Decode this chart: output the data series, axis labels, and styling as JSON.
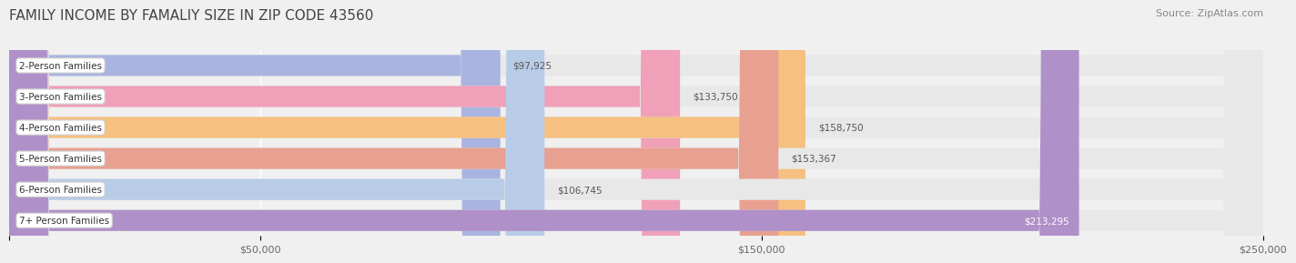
{
  "title": "FAMILY INCOME BY FAMALIY SIZE IN ZIP CODE 43560",
  "source": "Source: ZipAtlas.com",
  "categories": [
    "2-Person Families",
    "3-Person Families",
    "4-Person Families",
    "5-Person Families",
    "6-Person Families",
    "7+ Person Families"
  ],
  "values": [
    97925,
    133750,
    158750,
    153367,
    106745,
    213295
  ],
  "bar_colors": [
    "#aab4e0",
    "#f0a0b8",
    "#f5c080",
    "#e8a090",
    "#b8cce8",
    "#b090c8"
  ],
  "label_colors": [
    "#333333",
    "#333333",
    "#333333",
    "#333333",
    "#333333",
    "#ffffff"
  ],
  "value_labels": [
    "$97,925",
    "$133,750",
    "$158,750",
    "$153,367",
    "$106,745",
    "$213,295"
  ],
  "xlim": [
    0,
    250000
  ],
  "xticks": [
    0,
    50000,
    150000,
    250000
  ],
  "xtick_labels": [
    "",
    "$50,000",
    "$150,000",
    "$250,000"
  ],
  "background_color": "#f0f0f0",
  "bar_bg_color": "#e8e8e8",
  "title_fontsize": 11,
  "source_fontsize": 8
}
